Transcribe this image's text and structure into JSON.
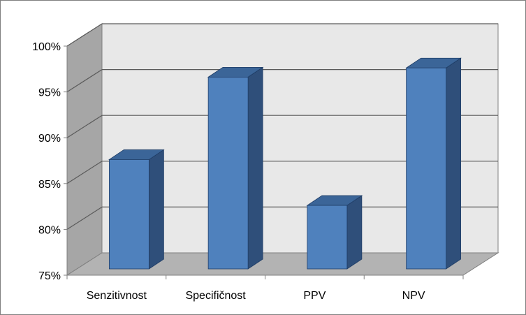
{
  "chart_data": {
    "type": "bar",
    "title": "",
    "xlabel": "",
    "ylabel": "",
    "categories": [
      "Senzitivnost",
      "Specifičnost",
      "PPV",
      "NPV"
    ],
    "values": [
      88,
      97,
      83,
      98
    ],
    "value_unit": "%",
    "ylim": [
      75,
      100
    ],
    "yticks": [
      75,
      80,
      85,
      90,
      95,
      100
    ],
    "ytick_labels": [
      "75%",
      "80%",
      "85%",
      "90%",
      "95%",
      "100%"
    ],
    "grid": true,
    "legend": "none",
    "style": "3d-column"
  },
  "colors": {
    "bar_front": "#4f81bd",
    "bar_side": "#2f4f7a",
    "bar_top": "#3b6598",
    "bar_outline": "#1f3d66",
    "back_wall": "#e8e8e8",
    "side_wall": "#a6a6a6",
    "floor": "#b3b3b3",
    "gridline": "#5a5a5a",
    "axis": "#7f7f7f"
  }
}
